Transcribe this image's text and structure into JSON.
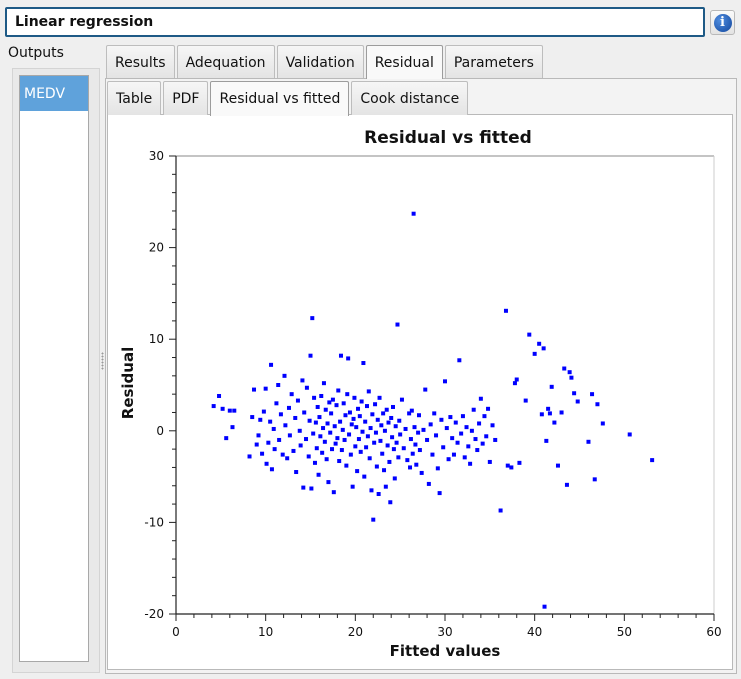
{
  "window": {
    "title": "Linear regression",
    "info_icon": "info-icon"
  },
  "outputs": {
    "label": "Outputs",
    "items": [
      {
        "label": "MEDV",
        "selected": true
      }
    ]
  },
  "tabs": [
    {
      "label": "Results",
      "active": false
    },
    {
      "label": "Adequation",
      "active": false
    },
    {
      "label": "Validation",
      "active": false
    },
    {
      "label": "Residual",
      "active": true
    },
    {
      "label": "Parameters",
      "active": false
    }
  ],
  "subtabs": [
    {
      "label": "Table",
      "active": false
    },
    {
      "label": "PDF",
      "active": false
    },
    {
      "label": "Residual vs fitted",
      "active": true
    },
    {
      "label": "Cook distance",
      "active": false
    }
  ],
  "chart_data": {
    "type": "scatter",
    "title": "Residual vs fitted",
    "xlabel": "Fitted values",
    "ylabel": "Residual",
    "xlim": [
      0,
      60
    ],
    "ylim": [
      -20,
      30
    ],
    "xticks": [
      0,
      10,
      20,
      30,
      40,
      50,
      60
    ],
    "yticks": [
      -20,
      -10,
      0,
      10,
      20,
      30
    ],
    "grid": false,
    "marker_color": "#0000ff",
    "points": [
      [
        4.2,
        2.7
      ],
      [
        4.8,
        3.8
      ],
      [
        5.2,
        2.4
      ],
      [
        5.6,
        -0.8
      ],
      [
        6.0,
        2.2
      ],
      [
        6.3,
        0.4
      ],
      [
        6.5,
        2.2
      ],
      [
        8.2,
        -2.8
      ],
      [
        8.5,
        1.5
      ],
      [
        8.7,
        4.5
      ],
      [
        9.0,
        -1.5
      ],
      [
        9.2,
        -0.5
      ],
      [
        9.4,
        1.2
      ],
      [
        9.6,
        -2.5
      ],
      [
        9.8,
        2.1
      ],
      [
        10.0,
        4.6
      ],
      [
        10.1,
        -3.6
      ],
      [
        10.3,
        -1.3
      ],
      [
        10.5,
        1.0
      ],
      [
        10.6,
        7.2
      ],
      [
        10.7,
        -4.2
      ],
      [
        10.9,
        0.2
      ],
      [
        11.0,
        -2.0
      ],
      [
        11.2,
        3.0
      ],
      [
        11.4,
        5.0
      ],
      [
        11.5,
        -1.0
      ],
      [
        11.7,
        1.8
      ],
      [
        11.9,
        -2.6
      ],
      [
        12.1,
        6.0
      ],
      [
        12.2,
        0.6
      ],
      [
        12.4,
        -3.0
      ],
      [
        12.6,
        2.5
      ],
      [
        12.7,
        -0.5
      ],
      [
        12.9,
        4.0
      ],
      [
        13.1,
        -2.2
      ],
      [
        13.3,
        1.4
      ],
      [
        13.4,
        -4.5
      ],
      [
        13.6,
        3.3
      ],
      [
        13.8,
        0.0
      ],
      [
        13.9,
        -1.6
      ],
      [
        14.1,
        5.5
      ],
      [
        14.2,
        -6.2
      ],
      [
        14.3,
        2.0
      ],
      [
        14.5,
        -0.9
      ],
      [
        14.6,
        4.7
      ],
      [
        14.8,
        -2.8
      ],
      [
        14.9,
        1.1
      ],
      [
        15.0,
        8.2
      ],
      [
        15.1,
        -6.3
      ],
      [
        15.2,
        12.3
      ],
      [
        15.3,
        -0.3
      ],
      [
        15.4,
        3.6
      ],
      [
        15.5,
        -3.5
      ],
      [
        15.6,
        0.9
      ],
      [
        15.7,
        -1.9
      ],
      [
        15.8,
        2.6
      ],
      [
        15.9,
        -4.8
      ],
      [
        16.0,
        1.5
      ],
      [
        16.1,
        -0.6
      ],
      [
        16.2,
        3.8
      ],
      [
        16.3,
        -2.4
      ],
      [
        16.4,
        0.3
      ],
      [
        16.5,
        5.2
      ],
      [
        16.6,
        -1.2
      ],
      [
        16.7,
        2.3
      ],
      [
        16.8,
        -3.1
      ],
      [
        16.9,
        0.8
      ],
      [
        17.0,
        -5.6
      ],
      [
        17.1,
        3.1
      ],
      [
        17.2,
        -0.2
      ],
      [
        17.3,
        1.9
      ],
      [
        17.4,
        -2.0
      ],
      [
        17.5,
        3.4
      ],
      [
        17.6,
        -6.7
      ],
      [
        17.7,
        0.5
      ],
      [
        17.8,
        -1.4
      ],
      [
        17.9,
        2.8
      ],
      [
        18.0,
        -0.8
      ],
      [
        18.1,
        4.4
      ],
      [
        18.2,
        -3.3
      ],
      [
        18.3,
        1.0
      ],
      [
        18.4,
        8.2
      ],
      [
        18.5,
        -2.1
      ],
      [
        18.6,
        0.1
      ],
      [
        18.7,
        3.0
      ],
      [
        18.8,
        -1.0
      ],
      [
        18.9,
        1.7
      ],
      [
        19.0,
        -3.8
      ],
      [
        19.1,
        4.0
      ],
      [
        19.2,
        7.9
      ],
      [
        19.3,
        -0.4
      ],
      [
        19.4,
        2.0
      ],
      [
        19.5,
        -2.6
      ],
      [
        19.6,
        0.7
      ],
      [
        19.7,
        -6.1
      ],
      [
        19.8,
        1.3
      ],
      [
        19.9,
        3.6
      ],
      [
        20.0,
        -1.7
      ],
      [
        20.1,
        0.4
      ],
      [
        20.2,
        -4.4
      ],
      [
        20.3,
        2.4
      ],
      [
        20.4,
        -0.9
      ],
      [
        20.5,
        1.6
      ],
      [
        20.6,
        -2.3
      ],
      [
        20.7,
        3.2
      ],
      [
        20.8,
        -0.1
      ],
      [
        20.9,
        7.4
      ],
      [
        21.0,
        -5.0
      ],
      [
        21.1,
        1.0
      ],
      [
        21.2,
        -1.8
      ],
      [
        21.3,
        2.7
      ],
      [
        21.4,
        -0.6
      ],
      [
        21.5,
        4.3
      ],
      [
        21.6,
        -3.0
      ],
      [
        21.7,
        0.3
      ],
      [
        21.8,
        -6.5
      ],
      [
        21.9,
        1.8
      ],
      [
        22.0,
        -9.7
      ],
      [
        22.1,
        -1.3
      ],
      [
        22.2,
        2.9
      ],
      [
        22.3,
        -0.2
      ],
      [
        22.4,
        -3.9
      ],
      [
        22.5,
        1.2
      ],
      [
        22.6,
        -6.9
      ],
      [
        22.7,
        3.6
      ],
      [
        22.8,
        -1.1
      ],
      [
        22.9,
        0.6
      ],
      [
        23.0,
        -2.5
      ],
      [
        23.1,
        1.9
      ],
      [
        23.2,
        -4.3
      ],
      [
        23.3,
        0.0
      ],
      [
        23.4,
        -6.1
      ],
      [
        23.5,
        2.3
      ],
      [
        23.6,
        -1.6
      ],
      [
        23.7,
        0.9
      ],
      [
        23.8,
        -3.4
      ],
      [
        23.9,
        -7.8
      ],
      [
        24.0,
        1.4
      ],
      [
        24.1,
        -0.7
      ],
      [
        24.2,
        2.6
      ],
      [
        24.3,
        -2.0
      ],
      [
        24.4,
        -5.2
      ],
      [
        24.5,
        0.5
      ],
      [
        24.6,
        -1.3
      ],
      [
        24.7,
        11.6
      ],
      [
        24.8,
        -2.9
      ],
      [
        24.9,
        1.1
      ],
      [
        25.0,
        -0.4
      ],
      [
        25.2,
        3.4
      ],
      [
        25.4,
        -1.9
      ],
      [
        25.6,
        0.2
      ],
      [
        25.8,
        -3.2
      ],
      [
        26.0,
        1.9
      ],
      [
        26.1,
        -4.0
      ],
      [
        26.2,
        -0.9
      ],
      [
        26.3,
        2.2
      ],
      [
        26.4,
        -2.5
      ],
      [
        26.5,
        23.7
      ],
      [
        26.6,
        0.4
      ],
      [
        26.7,
        -1.5
      ],
      [
        26.8,
        -3.7
      ],
      [
        27.0,
        -0.2
      ],
      [
        27.1,
        1.7
      ],
      [
        27.2,
        -2.1
      ],
      [
        27.4,
        -4.6
      ],
      [
        27.6,
        0.1
      ],
      [
        27.8,
        4.5
      ],
      [
        28.0,
        -1.0
      ],
      [
        28.2,
        -5.8
      ],
      [
        28.4,
        0.7
      ],
      [
        28.6,
        -2.6
      ],
      [
        28.8,
        1.9
      ],
      [
        29.0,
        -0.5
      ],
      [
        29.2,
        -4.1
      ],
      [
        29.4,
        -6.8
      ],
      [
        29.6,
        1.2
      ],
      [
        29.8,
        -1.8
      ],
      [
        30.0,
        5.4
      ],
      [
        30.2,
        0.3
      ],
      [
        30.4,
        -3.1
      ],
      [
        30.6,
        1.5
      ],
      [
        30.8,
        -0.8
      ],
      [
        31.0,
        -2.6
      ],
      [
        31.2,
        0.9
      ],
      [
        31.4,
        -1.3
      ],
      [
        31.6,
        7.7
      ],
      [
        31.8,
        -0.3
      ],
      [
        32.0,
        1.6
      ],
      [
        32.2,
        -2.9
      ],
      [
        32.4,
        0.4
      ],
      [
        32.6,
        -1.7
      ],
      [
        32.8,
        -3.6
      ],
      [
        33.0,
        0.0
      ],
      [
        33.2,
        2.3
      ],
      [
        33.4,
        -0.9
      ],
      [
        33.6,
        -2.1
      ],
      [
        33.8,
        0.8
      ],
      [
        34.0,
        3.5
      ],
      [
        34.2,
        -1.4
      ],
      [
        34.4,
        1.6
      ],
      [
        34.6,
        -0.6
      ],
      [
        34.8,
        2.4
      ],
      [
        35.0,
        -3.4
      ],
      [
        35.3,
        0.6
      ],
      [
        35.6,
        -1.0
      ],
      [
        36.2,
        -8.7
      ],
      [
        36.8,
        13.1
      ],
      [
        37.0,
        -3.8
      ],
      [
        37.4,
        -4.0
      ],
      [
        37.8,
        5.2
      ],
      [
        38.0,
        5.6
      ],
      [
        38.3,
        -3.5
      ],
      [
        39.0,
        3.3
      ],
      [
        39.4,
        10.5
      ],
      [
        40.0,
        8.4
      ],
      [
        40.5,
        9.5
      ],
      [
        40.8,
        1.8
      ],
      [
        41.0,
        9.0
      ],
      [
        41.1,
        -19.2
      ],
      [
        41.3,
        -1.1
      ],
      [
        41.5,
        2.4
      ],
      [
        41.7,
        1.9
      ],
      [
        41.9,
        4.8
      ],
      [
        42.2,
        0.9
      ],
      [
        42.6,
        -3.8
      ],
      [
        43.0,
        2.0
      ],
      [
        43.3,
        6.8
      ],
      [
        43.6,
        -5.9
      ],
      [
        43.9,
        6.4
      ],
      [
        44.1,
        5.8
      ],
      [
        44.4,
        4.1
      ],
      [
        44.8,
        3.2
      ],
      [
        46.0,
        -1.2
      ],
      [
        46.4,
        4.0
      ],
      [
        46.7,
        -5.3
      ],
      [
        47.0,
        2.9
      ],
      [
        47.6,
        0.8
      ],
      [
        50.6,
        -0.4
      ],
      [
        53.1,
        -3.2
      ]
    ]
  }
}
